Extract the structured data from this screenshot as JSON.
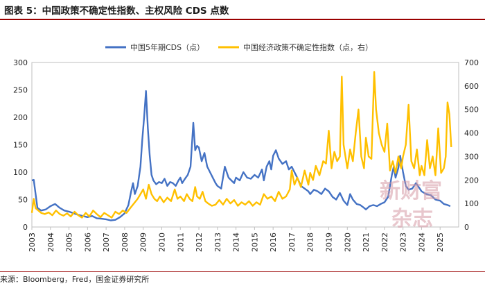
{
  "title": "图表 5：中国政策不确定性指数、主权风险 CDS 点数",
  "source": "来源：Bloomberg，Fred，国金证券研究所",
  "watermark": {
    "line1": "新财富",
    "line2": "杂志"
  },
  "chart_data": {
    "type": "line",
    "x_labels": [
      "2003",
      "2004",
      "2005",
      "2006",
      "2007",
      "2008",
      "2009",
      "2010",
      "2011",
      "2012",
      "2013",
      "2014",
      "2015",
      "2016",
      "2017",
      "2018",
      "2019",
      "2020",
      "2021",
      "2022",
      "2023",
      "2024",
      "2025"
    ],
    "y_left": {
      "ticks": [
        "0",
        "50",
        "100",
        "150",
        "200",
        "250",
        "300"
      ],
      "range": [
        0,
        300
      ]
    },
    "y_right": {
      "ticks": [
        "0",
        "100",
        "200",
        "300",
        "400",
        "500",
        "600",
        "700"
      ],
      "range": [
        0,
        700
      ]
    },
    "legend_position": "top",
    "series": [
      {
        "name": "中国5年期CDS（点）",
        "axis": "left",
        "color": "#4472C4",
        "points": [
          [
            2003.0,
            85
          ],
          [
            2003.1,
            86
          ],
          [
            2003.2,
            60
          ],
          [
            2003.3,
            35
          ],
          [
            2003.5,
            30
          ],
          [
            2003.75,
            32
          ],
          [
            2004.0,
            38
          ],
          [
            2004.25,
            42
          ],
          [
            2004.5,
            35
          ],
          [
            2004.75,
            30
          ],
          [
            2005.0,
            28
          ],
          [
            2005.25,
            25
          ],
          [
            2005.5,
            22
          ],
          [
            2005.75,
            20
          ],
          [
            2006.0,
            18
          ],
          [
            2006.25,
            20
          ],
          [
            2006.5,
            16
          ],
          [
            2006.75,
            15
          ],
          [
            2007.0,
            14
          ],
          [
            2007.25,
            12
          ],
          [
            2007.5,
            13
          ],
          [
            2007.75,
            18
          ],
          [
            2008.0,
            25
          ],
          [
            2008.2,
            40
          ],
          [
            2008.35,
            65
          ],
          [
            2008.45,
            80
          ],
          [
            2008.55,
            60
          ],
          [
            2008.7,
            75
          ],
          [
            2008.85,
            110
          ],
          [
            2008.95,
            160
          ],
          [
            2009.05,
            200
          ],
          [
            2009.15,
            248
          ],
          [
            2009.25,
            180
          ],
          [
            2009.35,
            130
          ],
          [
            2009.45,
            95
          ],
          [
            2009.55,
            85
          ],
          [
            2009.7,
            78
          ],
          [
            2009.85,
            82
          ],
          [
            2010.0,
            80
          ],
          [
            2010.15,
            88
          ],
          [
            2010.3,
            75
          ],
          [
            2010.45,
            82
          ],
          [
            2010.6,
            80
          ],
          [
            2010.75,
            75
          ],
          [
            2010.9,
            85
          ],
          [
            2011.0,
            90
          ],
          [
            2011.1,
            80
          ],
          [
            2011.25,
            88
          ],
          [
            2011.4,
            95
          ],
          [
            2011.55,
            110
          ],
          [
            2011.7,
            190
          ],
          [
            2011.8,
            140
          ],
          [
            2011.9,
            148
          ],
          [
            2012.0,
            145
          ],
          [
            2012.15,
            120
          ],
          [
            2012.3,
            135
          ],
          [
            2012.45,
            110
          ],
          [
            2012.6,
            100
          ],
          [
            2012.75,
            90
          ],
          [
            2012.9,
            80
          ],
          [
            2013.0,
            75
          ],
          [
            2013.2,
            70
          ],
          [
            2013.4,
            110
          ],
          [
            2013.5,
            100
          ],
          [
            2013.6,
            90
          ],
          [
            2013.75,
            85
          ],
          [
            2013.9,
            80
          ],
          [
            2014.0,
            90
          ],
          [
            2014.2,
            85
          ],
          [
            2014.4,
            100
          ],
          [
            2014.6,
            90
          ],
          [
            2014.8,
            88
          ],
          [
            2015.0,
            95
          ],
          [
            2015.2,
            90
          ],
          [
            2015.4,
            105
          ],
          [
            2015.5,
            85
          ],
          [
            2015.65,
            110
          ],
          [
            2015.8,
            120
          ],
          [
            2015.9,
            105
          ],
          [
            2016.0,
            130
          ],
          [
            2016.15,
            140
          ],
          [
            2016.3,
            125
          ],
          [
            2016.5,
            115
          ],
          [
            2016.7,
            120
          ],
          [
            2016.85,
            105
          ],
          [
            2017.0,
            110
          ],
          [
            2017.15,
            100
          ],
          [
            2017.3,
            90
          ],
          [
            2017.5,
            75
          ],
          [
            2017.7,
            70
          ],
          [
            2017.9,
            65
          ],
          [
            2018.0,
            60
          ],
          [
            2018.2,
            68
          ],
          [
            2018.4,
            65
          ],
          [
            2018.6,
            60
          ],
          [
            2018.8,
            70
          ],
          [
            2019.0,
            65
          ],
          [
            2019.2,
            55
          ],
          [
            2019.4,
            50
          ],
          [
            2019.6,
            62
          ],
          [
            2019.8,
            48
          ],
          [
            2020.0,
            40
          ],
          [
            2020.15,
            60
          ],
          [
            2020.3,
            50
          ],
          [
            2020.5,
            42
          ],
          [
            2020.7,
            40
          ],
          [
            2020.9,
            35
          ],
          [
            2021.0,
            32
          ],
          [
            2021.2,
            38
          ],
          [
            2021.4,
            40
          ],
          [
            2021.6,
            38
          ],
          [
            2021.8,
            42
          ],
          [
            2022.0,
            45
          ],
          [
            2022.2,
            55
          ],
          [
            2022.4,
            95
          ],
          [
            2022.5,
            110
          ],
          [
            2022.6,
            90
          ],
          [
            2022.75,
            108
          ],
          [
            2022.85,
            130
          ],
          [
            2023.0,
            100
          ],
          [
            2023.15,
            75
          ],
          [
            2023.3,
            68
          ],
          [
            2023.5,
            70
          ],
          [
            2023.7,
            80
          ],
          [
            2023.9,
            70
          ],
          [
            2024.0,
            65
          ],
          [
            2024.25,
            60
          ],
          [
            2024.5,
            58
          ],
          [
            2024.75,
            50
          ],
          [
            2025.0,
            48
          ],
          [
            2025.2,
            42
          ],
          [
            2025.4,
            40
          ],
          [
            2025.55,
            38
          ]
        ]
      },
      {
        "name": "中国经济政策不确定性指数（点，右）",
        "axis": "right",
        "color": "#FFC000",
        "points": [
          [
            2003.0,
            60
          ],
          [
            2003.1,
            120
          ],
          [
            2003.2,
            80
          ],
          [
            2003.35,
            70
          ],
          [
            2003.5,
            60
          ],
          [
            2003.7,
            55
          ],
          [
            2003.9,
            62
          ],
          [
            2004.1,
            50
          ],
          [
            2004.3,
            70
          ],
          [
            2004.5,
            55
          ],
          [
            2004.7,
            48
          ],
          [
            2004.9,
            58
          ],
          [
            2005.1,
            45
          ],
          [
            2005.3,
            65
          ],
          [
            2005.5,
            50
          ],
          [
            2005.7,
            40
          ],
          [
            2005.9,
            60
          ],
          [
            2006.1,
            45
          ],
          [
            2006.3,
            70
          ],
          [
            2006.5,
            55
          ],
          [
            2006.7,
            42
          ],
          [
            2006.9,
            60
          ],
          [
            2007.1,
            50
          ],
          [
            2007.3,
            40
          ],
          [
            2007.5,
            65
          ],
          [
            2007.7,
            55
          ],
          [
            2007.9,
            70
          ],
          [
            2008.1,
            60
          ],
          [
            2008.3,
            80
          ],
          [
            2008.5,
            100
          ],
          [
            2008.7,
            120
          ],
          [
            2008.85,
            140
          ],
          [
            2009.0,
            160
          ],
          [
            2009.15,
            120
          ],
          [
            2009.3,
            180
          ],
          [
            2009.45,
            140
          ],
          [
            2009.6,
            120
          ],
          [
            2009.75,
            110
          ],
          [
            2009.9,
            130
          ],
          [
            2010.1,
            105
          ],
          [
            2010.3,
            125
          ],
          [
            2010.5,
            110
          ],
          [
            2010.7,
            160
          ],
          [
            2010.85,
            120
          ],
          [
            2011.0,
            130
          ],
          [
            2011.2,
            110
          ],
          [
            2011.35,
            140
          ],
          [
            2011.5,
            120
          ],
          [
            2011.65,
            110
          ],
          [
            2011.8,
            170
          ],
          [
            2011.9,
            130
          ],
          [
            2012.05,
            120
          ],
          [
            2012.2,
            150
          ],
          [
            2012.35,
            110
          ],
          [
            2012.5,
            100
          ],
          [
            2012.7,
            90
          ],
          [
            2012.9,
            95
          ],
          [
            2013.1,
            115
          ],
          [
            2013.3,
            95
          ],
          [
            2013.5,
            120
          ],
          [
            2013.7,
            100
          ],
          [
            2013.9,
            115
          ],
          [
            2014.1,
            90
          ],
          [
            2014.3,
            105
          ],
          [
            2014.5,
            95
          ],
          [
            2014.7,
            110
          ],
          [
            2014.9,
            90
          ],
          [
            2015.1,
            105
          ],
          [
            2015.3,
            95
          ],
          [
            2015.5,
            140
          ],
          [
            2015.7,
            120
          ],
          [
            2015.9,
            130
          ],
          [
            2016.1,
            110
          ],
          [
            2016.3,
            150
          ],
          [
            2016.5,
            120
          ],
          [
            2016.7,
            130
          ],
          [
            2016.9,
            160
          ],
          [
            2017.0,
            240
          ],
          [
            2017.15,
            180
          ],
          [
            2017.3,
            210
          ],
          [
            2017.5,
            170
          ],
          [
            2017.7,
            240
          ],
          [
            2017.9,
            180
          ],
          [
            2018.0,
            230
          ],
          [
            2018.15,
            200
          ],
          [
            2018.3,
            260
          ],
          [
            2018.5,
            220
          ],
          [
            2018.7,
            280
          ],
          [
            2018.85,
            270
          ],
          [
            2019.0,
            410
          ],
          [
            2019.15,
            250
          ],
          [
            2019.3,
            320
          ],
          [
            2019.45,
            280
          ],
          [
            2019.6,
            300
          ],
          [
            2019.7,
            640
          ],
          [
            2019.8,
            350
          ],
          [
            2019.9,
            300
          ],
          [
            2020.0,
            250
          ],
          [
            2020.15,
            330
          ],
          [
            2020.3,
            280
          ],
          [
            2020.45,
            400
          ],
          [
            2020.6,
            500
          ],
          [
            2020.75,
            300
          ],
          [
            2020.9,
            250
          ],
          [
            2021.0,
            380
          ],
          [
            2021.15,
            300
          ],
          [
            2021.3,
            290
          ],
          [
            2021.45,
            660
          ],
          [
            2021.55,
            500
          ],
          [
            2021.7,
            400
          ],
          [
            2021.85,
            350
          ],
          [
            2022.0,
            320
          ],
          [
            2022.15,
            440
          ],
          [
            2022.3,
            240
          ],
          [
            2022.45,
            280
          ],
          [
            2022.6,
            230
          ],
          [
            2022.75,
            300
          ],
          [
            2022.9,
            250
          ],
          [
            2023.0,
            300
          ],
          [
            2023.15,
            350
          ],
          [
            2023.3,
            520
          ],
          [
            2023.45,
            280
          ],
          [
            2023.6,
            250
          ],
          [
            2023.75,
            330
          ],
          [
            2023.9,
            220
          ],
          [
            2024.0,
            260
          ],
          [
            2024.15,
            220
          ],
          [
            2024.3,
            370
          ],
          [
            2024.45,
            250
          ],
          [
            2024.6,
            300
          ],
          [
            2024.75,
            220
          ],
          [
            2024.9,
            420
          ],
          [
            2025.05,
            230
          ],
          [
            2025.2,
            250
          ],
          [
            2025.3,
            300
          ],
          [
            2025.4,
            530
          ],
          [
            2025.5,
            480
          ],
          [
            2025.6,
            340
          ]
        ]
      }
    ]
  }
}
